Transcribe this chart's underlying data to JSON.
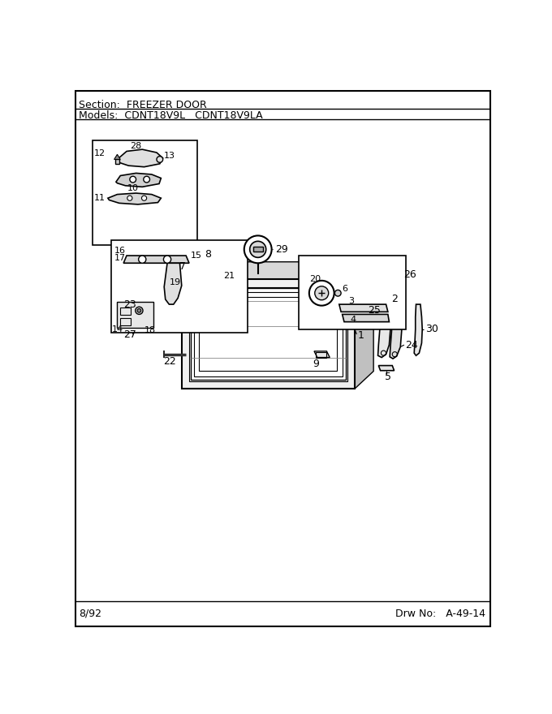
{
  "section_text": "Section:  FREEZER DOOR",
  "models_text": "Models:  CDNT18V9L   CDNT18V9LA",
  "footer_left": "8/92",
  "footer_right": "Drw No:   A-49-14",
  "bg_color": "#ffffff"
}
